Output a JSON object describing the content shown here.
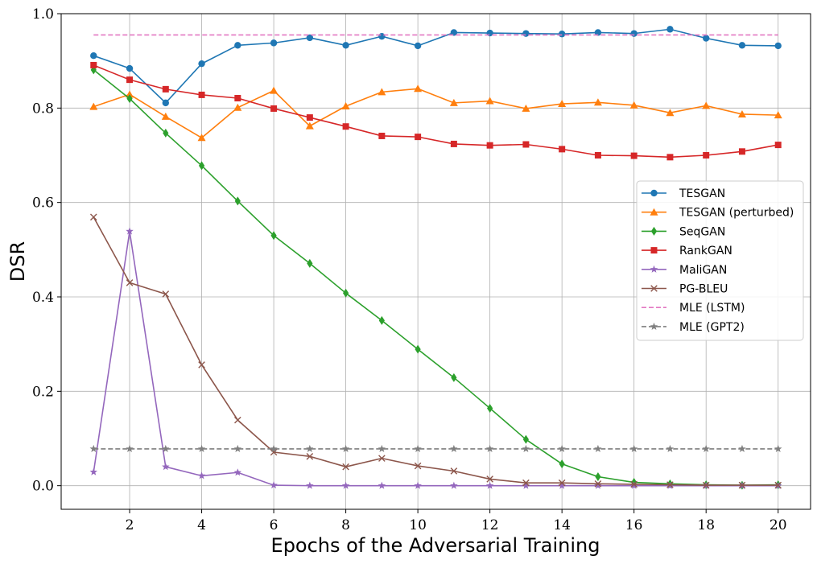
{
  "chart_data": {
    "type": "line",
    "title": "",
    "xlabel": "Epochs of the Adversarial Training",
    "ylabel": "DSR",
    "x": [
      1,
      2,
      3,
      4,
      5,
      6,
      7,
      8,
      9,
      10,
      11,
      12,
      13,
      14,
      15,
      16,
      17,
      18,
      19,
      20
    ],
    "xlim": [
      0.1,
      20.9
    ],
    "ylim": [
      -0.05,
      1.0
    ],
    "xticks": [
      2,
      4,
      6,
      8,
      10,
      12,
      14,
      16,
      18,
      20
    ],
    "xtick_labels": [
      "2",
      "4",
      "6",
      "8",
      "10",
      "12",
      "14",
      "16",
      "18",
      "20"
    ],
    "yticks": [
      0.0,
      0.2,
      0.4,
      0.6,
      0.8,
      1.0
    ],
    "ytick_labels": [
      "0.0",
      "0.2",
      "0.4",
      "0.6",
      "0.8",
      "1.0"
    ],
    "grid": true,
    "legend_position": "center-right",
    "series": [
      {
        "name": "TESGAN",
        "color": "#1f77b4",
        "marker": "circle",
        "dash": "solid",
        "values": [
          0.911,
          0.884,
          0.811,
          0.894,
          0.933,
          0.938,
          0.949,
          0.933,
          0.952,
          0.932,
          0.96,
          0.959,
          0.958,
          0.957,
          0.96,
          0.958,
          0.967,
          0.948,
          0.933,
          0.932
        ]
      },
      {
        "name": "TESGAN (perturbed)",
        "color": "#ff7f0e",
        "marker": "triangle",
        "dash": "solid",
        "values": [
          0.803,
          0.829,
          0.782,
          0.737,
          0.801,
          0.837,
          0.762,
          0.804,
          0.834,
          0.841,
          0.811,
          0.815,
          0.799,
          0.809,
          0.812,
          0.806,
          0.79,
          0.805,
          0.787,
          0.785
        ]
      },
      {
        "name": "SeqGAN",
        "color": "#2ca02c",
        "marker": "diamond",
        "dash": "solid",
        "values": [
          0.881,
          0.82,
          0.747,
          0.678,
          0.603,
          0.53,
          0.471,
          0.408,
          0.35,
          0.289,
          0.229,
          0.164,
          0.098,
          0.046,
          0.019,
          0.007,
          0.004,
          0.002,
          0.001,
          0.002
        ]
      },
      {
        "name": "RankGAN",
        "color": "#d62728",
        "marker": "square",
        "dash": "solid",
        "values": [
          0.891,
          0.86,
          0.84,
          0.828,
          0.821,
          0.799,
          0.78,
          0.761,
          0.741,
          0.739,
          0.724,
          0.721,
          0.723,
          0.713,
          0.7,
          0.699,
          0.696,
          0.7,
          0.708,
          0.722
        ]
      },
      {
        "name": "MaliGAN",
        "color": "#9467bd",
        "marker": "star",
        "dash": "solid",
        "values": [
          0.029,
          0.539,
          0.04,
          0.021,
          0.028,
          0.001,
          0.0,
          0.0,
          0.0,
          0.0,
          0.0,
          0.0,
          0.0,
          0.0,
          0.0,
          0.0,
          0.0,
          0.0,
          0.0,
          0.0
        ]
      },
      {
        "name": "PG-BLEU",
        "color": "#8c564b",
        "marker": "x",
        "dash": "solid",
        "values": [
          0.569,
          0.43,
          0.406,
          0.256,
          0.139,
          0.071,
          0.062,
          0.04,
          0.058,
          0.042,
          0.031,
          0.014,
          0.006,
          0.006,
          0.004,
          0.003,
          0.002,
          0.001,
          0.001,
          0.001
        ]
      },
      {
        "name": "MLE (LSTM)",
        "color": "#e377c2",
        "marker": "none",
        "dash": "dashed",
        "values": [
          0.955,
          0.955,
          0.955,
          0.955,
          0.955,
          0.955,
          0.955,
          0.955,
          0.955,
          0.955,
          0.955,
          0.955,
          0.955,
          0.955,
          0.955,
          0.955,
          0.955,
          0.955,
          0.955,
          0.955
        ]
      },
      {
        "name": "MLE (GPT2)",
        "color": "#7f7f7f",
        "marker": "star",
        "dash": "dashed",
        "values": [
          0.078,
          0.078,
          0.078,
          0.078,
          0.078,
          0.078,
          0.078,
          0.078,
          0.078,
          0.078,
          0.078,
          0.078,
          0.078,
          0.078,
          0.078,
          0.078,
          0.078,
          0.078,
          0.078,
          0.078
        ]
      }
    ]
  }
}
